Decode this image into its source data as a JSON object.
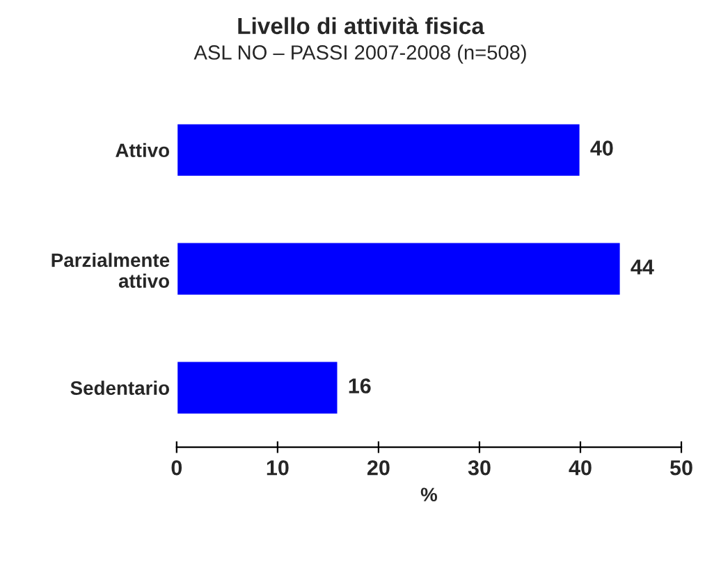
{
  "chart_data": {
    "type": "bar",
    "orientation": "horizontal",
    "title": "Livello di attività fisica",
    "subtitle": "ASL NO – PASSI 2007-2008 (n=508)",
    "xlabel": "%",
    "categories": [
      "Attivo",
      "Parzialmente\nattivo",
      "Sedentario"
    ],
    "values": [
      40,
      44,
      16
    ],
    "color": "#0000ff",
    "xlim": [
      0,
      50
    ],
    "xticks": [
      0,
      10,
      20,
      30,
      40,
      50
    ],
    "data_labels": true,
    "grid": false,
    "legend": false
  }
}
